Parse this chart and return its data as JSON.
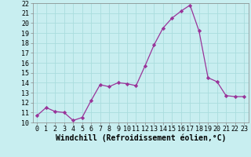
{
  "x": [
    0,
    1,
    2,
    3,
    4,
    5,
    6,
    7,
    8,
    9,
    10,
    11,
    12,
    13,
    14,
    15,
    16,
    17,
    18,
    19,
    20,
    21,
    22,
    23
  ],
  "y": [
    10.7,
    11.5,
    11.1,
    11.0,
    10.2,
    10.5,
    12.2,
    13.8,
    13.6,
    14.0,
    13.9,
    13.7,
    15.7,
    17.8,
    19.5,
    20.5,
    21.2,
    21.8,
    19.2,
    14.5,
    14.1,
    12.7,
    12.6,
    12.6
  ],
  "line_color": "#993399",
  "marker": "D",
  "marker_size": 2.2,
  "bg_color": "#c8eef0",
  "grid_color": "#aadddd",
  "xlabel": "Windchill (Refroidissement éolien,°C)",
  "xlabel_fontsize": 7,
  "tick_fontsize": 6,
  "ylim": [
    10,
    22
  ],
  "xlim": [
    -0.5,
    23.5
  ],
  "yticks": [
    10,
    11,
    12,
    13,
    14,
    15,
    16,
    17,
    18,
    19,
    20,
    21,
    22
  ],
  "xticks": [
    0,
    1,
    2,
    3,
    4,
    5,
    6,
    7,
    8,
    9,
    10,
    11,
    12,
    13,
    14,
    15,
    16,
    17,
    18,
    19,
    20,
    21,
    22,
    23
  ],
  "xtick_labels": [
    "0",
    "1",
    "2",
    "3",
    "4",
    "5",
    "6",
    "7",
    "8",
    "9",
    "10",
    "11",
    "12",
    "13",
    "14",
    "15",
    "16",
    "17",
    "18",
    "19",
    "20",
    "21",
    "22",
    "23"
  ]
}
